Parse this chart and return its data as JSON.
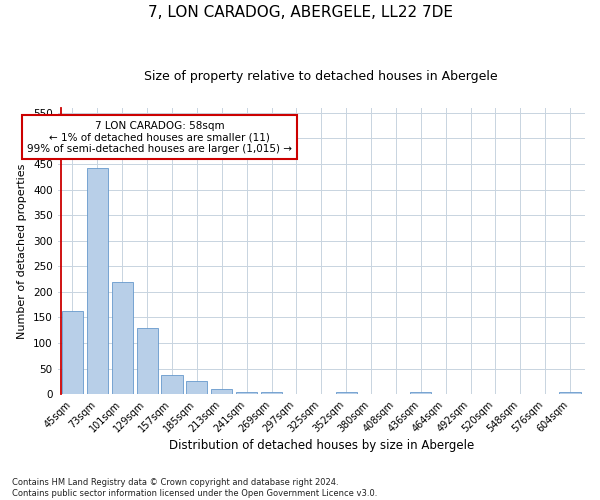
{
  "title": "7, LON CARADOG, ABERGELE, LL22 7DE",
  "subtitle": "Size of property relative to detached houses in Abergele",
  "xlabel": "Distribution of detached houses by size in Abergele",
  "ylabel": "Number of detached properties",
  "categories": [
    "45sqm",
    "73sqm",
    "101sqm",
    "129sqm",
    "157sqm",
    "185sqm",
    "213sqm",
    "241sqm",
    "269sqm",
    "297sqm",
    "325sqm",
    "352sqm",
    "380sqm",
    "408sqm",
    "436sqm",
    "464sqm",
    "492sqm",
    "520sqm",
    "548sqm",
    "576sqm",
    "604sqm"
  ],
  "values": [
    163,
    443,
    220,
    129,
    37,
    25,
    11,
    5,
    5,
    0,
    0,
    5,
    0,
    0,
    5,
    0,
    0,
    0,
    0,
    0,
    5
  ],
  "bar_color": "#b8cfe8",
  "bar_edge_color": "#6699cc",
  "annotation_box_text": "7 LON CARADOG: 58sqm\n← 1% of detached houses are smaller (11)\n99% of semi-detached houses are larger (1,015) →",
  "annotation_box_color": "#ffffff",
  "annotation_box_edge_color": "#cc0000",
  "annotation_line_color": "#cc0000",
  "ylim": [
    0,
    560
  ],
  "yticks": [
    0,
    50,
    100,
    150,
    200,
    250,
    300,
    350,
    400,
    450,
    500,
    550
  ],
  "footnote_line1": "Contains HM Land Registry data © Crown copyright and database right 2024.",
  "footnote_line2": "Contains public sector information licensed under the Open Government Licence v3.0.",
  "background_color": "#ffffff",
  "grid_color": "#c8d4e0",
  "title_fontsize": 11,
  "subtitle_fontsize": 9,
  "xlabel_fontsize": 8.5,
  "ylabel_fontsize": 8,
  "tick_fontsize": 7,
  "annot_fontsize": 7.5,
  "footnote_fontsize": 6
}
